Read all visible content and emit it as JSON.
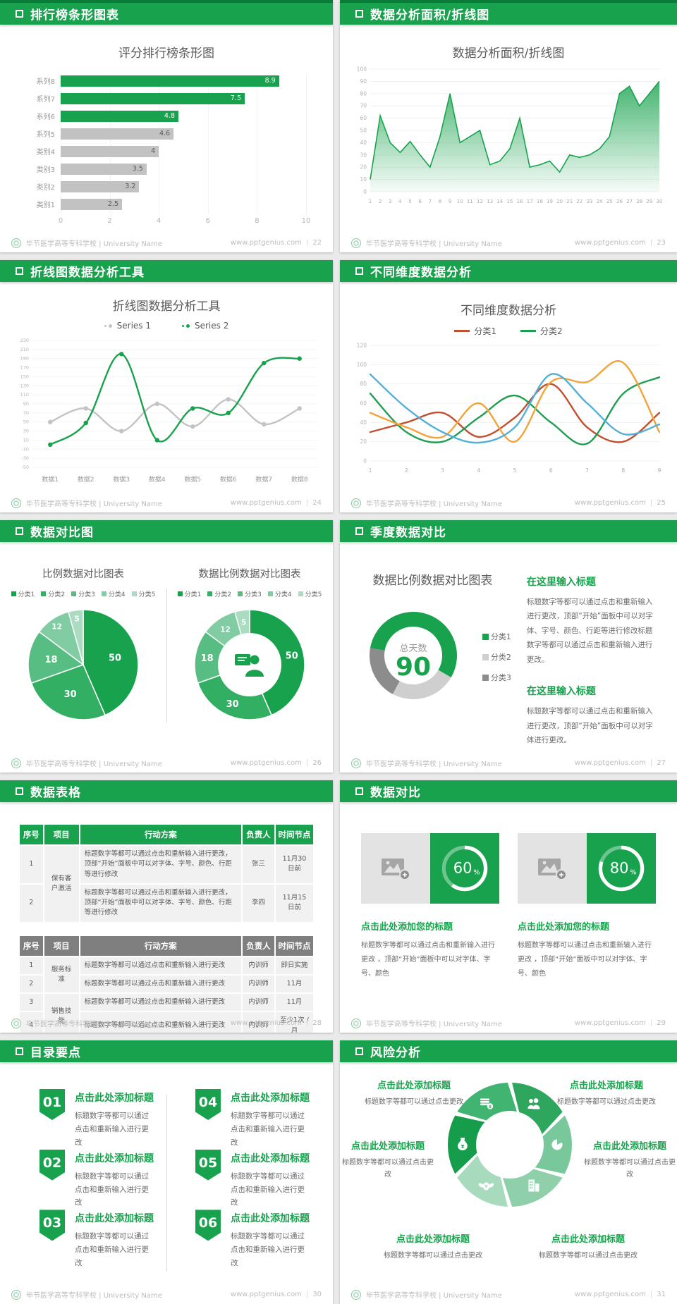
{
  "page": {
    "bg": "#EAEAEA"
  },
  "footer": {
    "school": "毕节医学高等专科学校 | University Name",
    "site": "www.pptgenius.com",
    "pages": [
      "22",
      "23",
      "24",
      "25",
      "26",
      "27",
      "28",
      "29",
      "30",
      "31"
    ]
  },
  "colors": {
    "primary": "#18A24D",
    "primary_dark": "#0A7B39",
    "bar_gray": "#C2C2C2",
    "text_dark": "#595959",
    "axis_gray": "#B3B3B3",
    "pie_greens": [
      "#18A24D",
      "#33AF63",
      "#58BD83",
      "#82CCA3",
      "#ABDBC0"
    ],
    "line_red": "#C0502F",
    "line_green": "#1E9E50",
    "line_orange": "#F2A33A",
    "line_blue": "#53AFD8",
    "donut3_colors": [
      "#18A24D",
      "#CFCFCF",
      "#8C8C8C"
    ],
    "wheel_greens": [
      "#169D4B",
      "#41B471",
      "#2EA65E",
      "#79C89C",
      "#8FD0AA",
      "#A8DBBE"
    ]
  },
  "slides": [
    {
      "header": "排行榜条形图表"
    },
    {
      "header": "数据分析面积/折线图"
    },
    {
      "header": "折线图数据分析工具"
    },
    {
      "header": "不同维度数据分析"
    },
    {
      "header": "数据对比图"
    },
    {
      "header": "季度数据对比",
      "blocks": [
        {
          "title": "在这里输入标题",
          "text": "标题数字等都可以通过点击和重新输入进行更改，顶部“开始”面板中可以对字体、字号、颜色、行距等进行修改标题数字等都可以通过点击和重新输入进行更改。"
        },
        {
          "title": "在这里输入标题",
          "text": "标题数字等都可以通过点击和重新输入进行更改，顶部“开始”面板中可以对字体进行更改。"
        }
      ]
    },
    {
      "header": "数据表格",
      "table1": {
        "columns": [
          "序号",
          "项目",
          "行动方案",
          "负责人",
          "时间节点"
        ],
        "rows": [
          [
            "1",
            "保有客户激活",
            "标题数字等都可以通过点击和重新输入进行更改，顶部“开始”面板中可以对字体、字号、颜色、行距等进行修改",
            "张三",
            "11月30日前"
          ],
          [
            "2",
            "",
            "标题数字等都可以通过点击和重新输入进行更改，顶部“开始”面板中可以对字体、字号、颜色、行距等进行修改",
            "李四",
            "11月15日前"
          ]
        ]
      },
      "table2": {
        "columns": [
          "序号",
          "项目",
          "行动方案",
          "负责人",
          "时间节点"
        ],
        "rows": [
          [
            "1",
            "服务标准",
            "标题数字等都可以通过点击和重新输入进行更改",
            "内训师",
            "即日实施"
          ],
          [
            "2",
            "",
            "标题数字等都可以通过点击和重新输入进行更改",
            "内训师",
            "11月"
          ],
          [
            "3",
            "销售技能",
            "标题数字等都可以通过点击和重新输入进行更改",
            "内训师",
            "11月"
          ],
          [
            "4",
            "",
            "标题数字等都可以通过点击和重新输入进行更改",
            "内训师",
            "至少1次 /月"
          ]
        ]
      }
    },
    {
      "header": "数据对比",
      "cards": [
        {
          "pct": "60",
          "unit": "%",
          "title": "点击此处添加您的标题",
          "text": "标题数字等都可以通过点击和重新输入进行更改 ，顶部“开始”面板中可以对字体、字号、颜色"
        },
        {
          "pct": "80",
          "unit": "%",
          "title": "点击此处添加您的标题",
          "text": "标题数字等都可以通过点击和重新输入进行更改 ，顶部“开始”面板中可以对字体、字号、颜色"
        }
      ]
    },
    {
      "header": "目录要点",
      "items": [
        {
          "num": "01",
          "title": "点击此处添加标题",
          "desc": "标题数字等都可以通过点击和重新输入进行更改"
        },
        {
          "num": "02",
          "title": "点击此处添加标题",
          "desc": "标题数字等都可以通过点击和重新输入进行更改"
        },
        {
          "num": "03",
          "title": "点击此处添加标题",
          "desc": "标题数字等都可以通过点击和重新输入进行更改"
        },
        {
          "num": "04",
          "title": "点击此处添加标题",
          "desc": "标题数字等都可以通过点击和重新输入进行更改"
        },
        {
          "num": "05",
          "title": "点击此处添加标题",
          "desc": "标题数字等都可以通过点击和重新输入进行更改"
        },
        {
          "num": "06",
          "title": "点击此处添加标题",
          "desc": "标题数字等都可以通过点击和重新输入进行更改"
        }
      ]
    },
    {
      "header": "风险分析",
      "items": [
        {
          "icon": "money-bag-icon",
          "title": "点击此处添加标题",
          "desc": "标题数字等都可以通过点击更改"
        },
        {
          "icon": "coins-icon",
          "title": "点击此处添加标题",
          "desc": "标题数字等都可以通过点击更改"
        },
        {
          "icon": "winged-money-icon",
          "title": "点击此处添加标题",
          "desc": "标题数字等都可以通过点击更改"
        },
        {
          "icon": "people-icon",
          "title": "点击此处添加标题",
          "desc": "标题数字等都可以通过点击更改"
        },
        {
          "icon": "building-icon",
          "title": "点击此处添加标题",
          "desc": "标题数字等都可以通过点击更改"
        },
        {
          "icon": "pie-chart-icon",
          "title": "点击此处添加标题",
          "desc": "标题数字等都可以通过点击更改"
        }
      ]
    }
  ],
  "chart_data": [
    {
      "type": "bar",
      "orientation": "horizontal",
      "title": "评分排行榜条形图",
      "categories": [
        "系列8",
        "系列7",
        "系列6",
        "系列5",
        "类别4",
        "类别3",
        "类别2",
        "类别1"
      ],
      "values": [
        8.9,
        7.5,
        4.8,
        4.6,
        4,
        3.5,
        3.2,
        2.5
      ],
      "highlighted": [
        "系列8",
        "系列7",
        "系列6"
      ],
      "xlim": [
        0,
        10
      ],
      "xticks": [
        0,
        2,
        4,
        6,
        8,
        10
      ]
    },
    {
      "type": "area",
      "title": "数据分析面积/折线图",
      "x": [
        1,
        2,
        3,
        4,
        5,
        6,
        7,
        8,
        9,
        10,
        11,
        12,
        13,
        14,
        15,
        16,
        17,
        18,
        19,
        20,
        21,
        22,
        23,
        24,
        25,
        26,
        27,
        28,
        29,
        30
      ],
      "values": [
        10,
        62,
        40,
        32,
        41,
        30,
        20,
        45,
        80,
        40,
        45,
        50,
        22,
        25,
        35,
        60,
        20,
        22,
        25,
        16,
        30,
        28,
        30,
        35,
        45,
        80,
        86,
        70,
        80,
        90
      ],
      "ylim": [
        0,
        100
      ],
      "yticks": [
        0,
        10,
        20,
        30,
        40,
        50,
        60,
        70,
        80,
        90,
        100
      ]
    },
    {
      "type": "line",
      "title": "折线图数据分析工具",
      "categories": [
        "数据1",
        "数据2",
        "数据3",
        "数据4",
        "数据5",
        "数据6",
        "数据7",
        "数据8"
      ],
      "series": [
        {
          "name": "Series 1",
          "values": [
            50,
            80,
            30,
            90,
            40,
            100,
            45,
            80
          ]
        },
        {
          "name": "Series 2",
          "values": [
            0,
            48,
            200,
            10,
            80,
            70,
            180,
            190
          ]
        }
      ],
      "ylim": [
        -50,
        230
      ],
      "ytick_step": 20
    },
    {
      "type": "line",
      "title": "不同维度数据分析",
      "x": [
        1,
        2,
        3,
        4,
        5,
        6,
        7,
        8,
        9
      ],
      "legend": [
        "分类1",
        "分类2"
      ],
      "series": [
        {
          "name": "分类1",
          "values": [
            30,
            40,
            50,
            25,
            45,
            80,
            35,
            20,
            50
          ]
        },
        {
          "name": "分类2",
          "values": [
            70,
            30,
            20,
            45,
            68,
            40,
            18,
            70,
            87
          ]
        },
        {
          "name": "",
          "values": [
            50,
            35,
            25,
            60,
            20,
            82,
            82,
            102,
            30
          ]
        },
        {
          "name": "",
          "values": [
            90,
            55,
            30,
            19,
            35,
            90,
            60,
            28,
            38
          ]
        }
      ],
      "ylim": [
        0,
        120
      ],
      "ytick_step": 20
    },
    {
      "type": "pie",
      "title": "比例数据对比图表",
      "labels": [
        "分类1",
        "分类2",
        "分类3",
        "分类4",
        "分类5"
      ],
      "values": [
        50,
        30,
        18,
        12,
        5
      ]
    },
    {
      "type": "donut",
      "title": "数据比例数据对比图表",
      "labels": [
        "分类1",
        "分类2",
        "分类3",
        "分类4",
        "分类5"
      ],
      "values": [
        50,
        30,
        18,
        12,
        5
      ]
    },
    {
      "type": "donut",
      "title": "数据比例数据对比图表",
      "center_label": "总天数",
      "center_value": "90",
      "labels": [
        "分类1",
        "分类2",
        "分类3"
      ],
      "values": [
        50,
        22,
        18
      ]
    },
    {
      "type": "progress",
      "values": [
        60,
        80
      ],
      "unit": "%"
    }
  ]
}
